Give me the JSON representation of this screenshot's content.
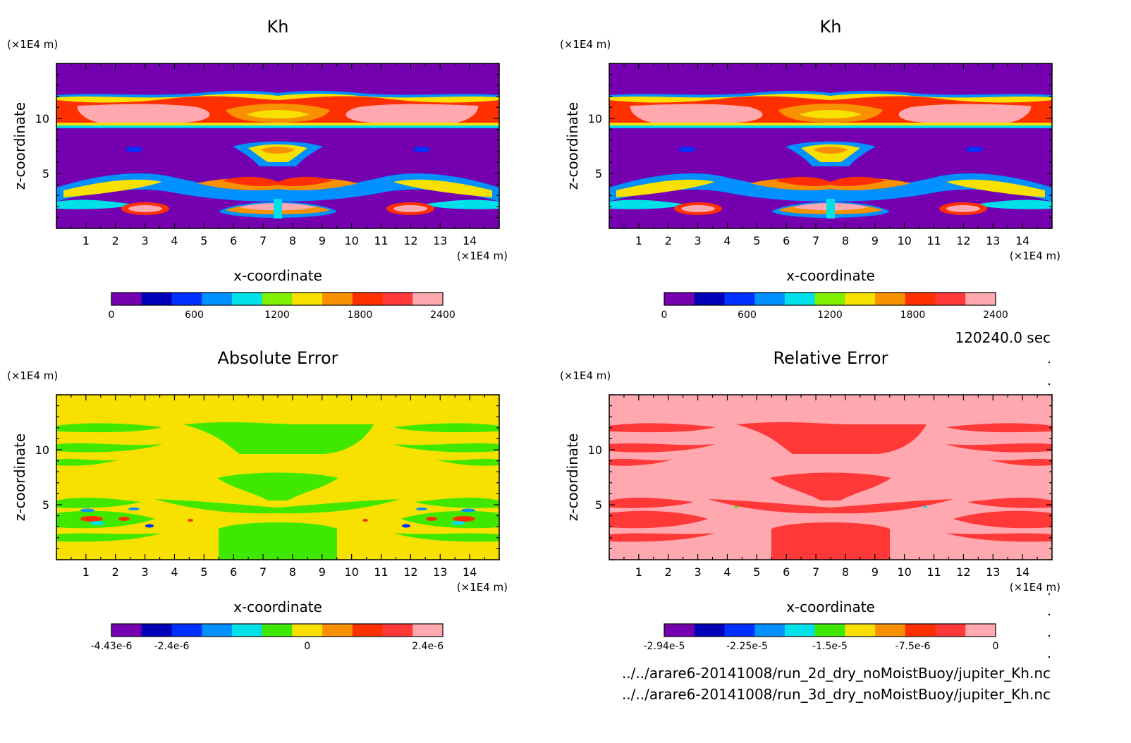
{
  "time_label": "120240.0 sec",
  "file_lines": [
    "../../arare6-20141008/run_2d_dry_noMoistBuoy/jupiter_Kh.nc",
    "../../arare6-20141008/run_3d_dry_noMoistBuoy/jupiter_Kh.nc"
  ],
  "chart_data": [
    {
      "type": "heatmap",
      "title": "Kh",
      "xlabel": "x-coordinate",
      "ylabel": "z-coordinate",
      "x_unit": "(×1E4 m)",
      "y_unit": "(×1E4 m)",
      "xlim": [
        0,
        15
      ],
      "ylim": [
        0,
        15
      ],
      "x_ticks": [
        1,
        2,
        3,
        4,
        5,
        6,
        7,
        8,
        9,
        10,
        11,
        12,
        13,
        14
      ],
      "y_ticks": [
        5,
        10
      ],
      "colorbar": {
        "colors": [
          "#7400b0",
          "#0000b8",
          "#0030ff",
          "#0090ff",
          "#00e0e8",
          "#80f000",
          "#f8e000",
          "#f89000",
          "#ff3000",
          "#ff3838",
          "#ffa8b0"
        ],
        "tick_values": [
          "0",
          "600",
          "1200",
          "1800",
          "2400"
        ]
      }
    },
    {
      "type": "heatmap",
      "title": "Kh",
      "xlabel": "x-coordinate",
      "ylabel": "z-coordinate",
      "x_unit": "(×1E4 m)",
      "y_unit": "(×1E4 m)",
      "xlim": [
        0,
        15
      ],
      "ylim": [
        0,
        15
      ],
      "x_ticks": [
        1,
        2,
        3,
        4,
        5,
        6,
        7,
        8,
        9,
        10,
        11,
        12,
        13,
        14
      ],
      "y_ticks": [
        5,
        10
      ],
      "colorbar": {
        "colors": [
          "#7400b0",
          "#0000b8",
          "#0030ff",
          "#0090ff",
          "#00e0e8",
          "#80f000",
          "#f8e000",
          "#f89000",
          "#ff3000",
          "#ff3838",
          "#ffa8b0"
        ],
        "tick_values": [
          "0",
          "600",
          "1200",
          "1800",
          "2400"
        ]
      }
    },
    {
      "type": "heatmap",
      "title": "Absolute Error",
      "xlabel": "x-coordinate",
      "ylabel": "z-coordinate",
      "x_unit": "(×1E4 m)",
      "y_unit": "(×1E4 m)",
      "xlim": [
        0,
        15
      ],
      "ylim": [
        0,
        15
      ],
      "x_ticks": [
        1,
        2,
        3,
        4,
        5,
        6,
        7,
        8,
        9,
        10,
        11,
        12,
        13,
        14
      ],
      "y_ticks": [
        5,
        10
      ],
      "colorbar": {
        "colors": [
          "#7400b0",
          "#0000b8",
          "#0030ff",
          "#0090ff",
          "#00e0e8",
          "#40e800",
          "#f8e000",
          "#f89000",
          "#ff3000",
          "#ff3838",
          "#ffa8b0"
        ],
        "tick_values": [
          "-4.43e-6",
          "-2.4e-6",
          "0",
          "2.4e-6"
        ]
      }
    },
    {
      "type": "heatmap",
      "title": "Relative Error",
      "xlabel": "x-coordinate",
      "ylabel": "z-coordinate",
      "x_unit": "(×1E4 m)",
      "y_unit": "(×1E4 m)",
      "xlim": [
        0,
        15
      ],
      "ylim": [
        0,
        15
      ],
      "x_ticks": [
        1,
        2,
        3,
        4,
        5,
        6,
        7,
        8,
        9,
        10,
        11,
        12,
        13,
        14
      ],
      "y_ticks": [
        5,
        10
      ],
      "colorbar": {
        "colors": [
          "#7400b0",
          "#0000b8",
          "#0030ff",
          "#0090ff",
          "#00e0e8",
          "#40e800",
          "#f8e000",
          "#f89000",
          "#ff3000",
          "#ff3838",
          "#ffa8b0"
        ],
        "tick_values": [
          "-2.94e-5",
          "-2.25e-5",
          "-1.5e-5",
          "-7.5e-6",
          "0"
        ]
      }
    }
  ]
}
